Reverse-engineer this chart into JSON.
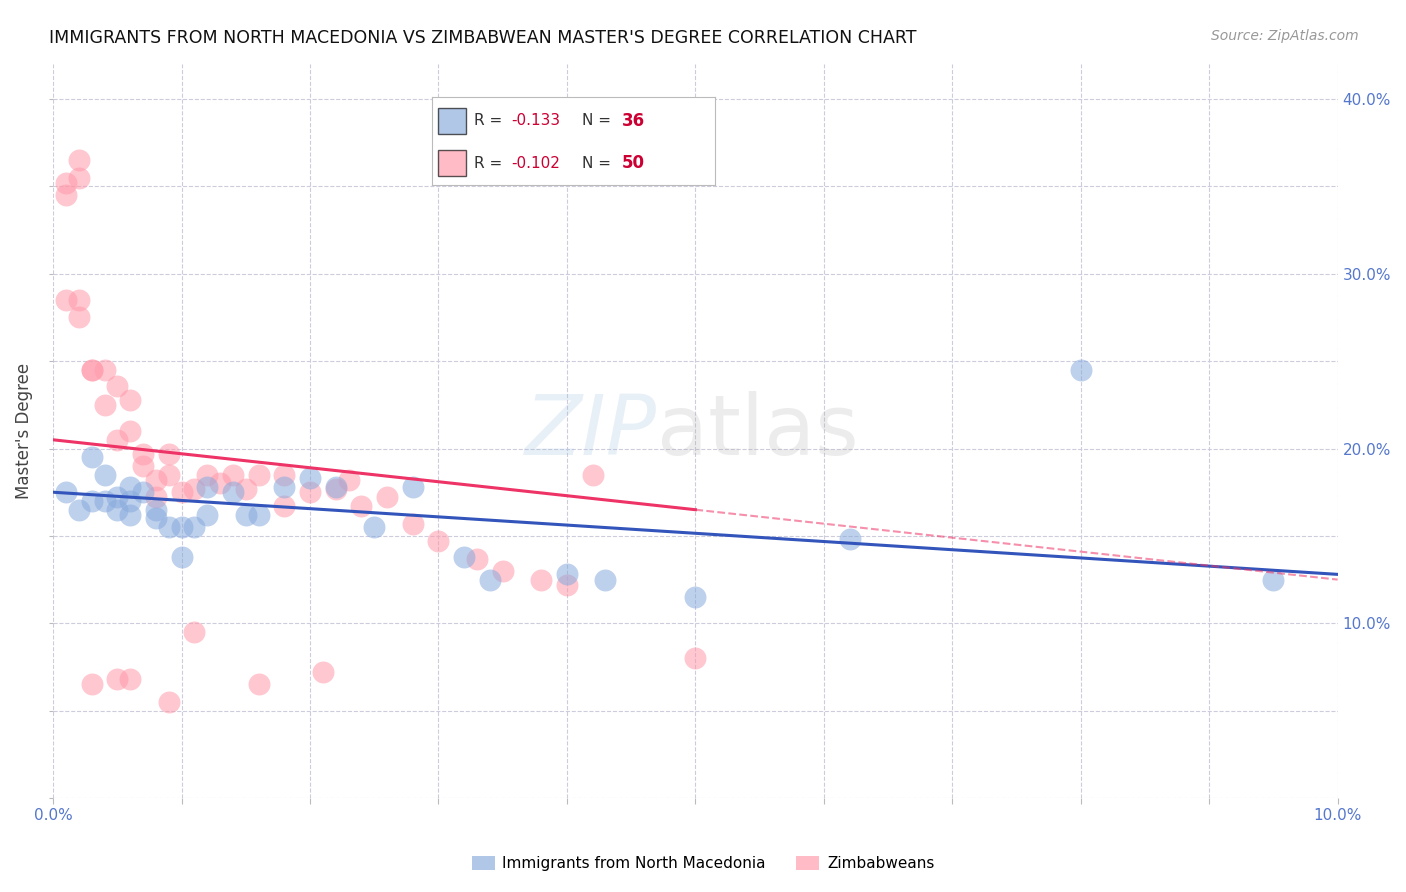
{
  "title": "IMMIGRANTS FROM NORTH MACEDONIA VS ZIMBABWEAN MASTER'S DEGREE CORRELATION CHART",
  "source": "Source: ZipAtlas.com",
  "ylabel_left": "Master's Degree",
  "legend1_label": "Immigrants from North Macedonia",
  "legend2_label": "Zimbabweans",
  "r1": -0.133,
  "n1": 36,
  "r2": -0.102,
  "n2": 50,
  "color1": "#88AADD",
  "color2": "#FF99AA",
  "trend1_color": "#3355BB",
  "trend2_color": "#EE3366",
  "axis_label_color": "#5577CC",
  "xmin": 0.0,
  "xmax": 0.1,
  "ymin": 0.0,
  "ymax": 0.42,
  "blue_scatter_x": [
    0.001,
    0.002,
    0.003,
    0.003,
    0.004,
    0.004,
    0.005,
    0.005,
    0.006,
    0.006,
    0.006,
    0.007,
    0.008,
    0.008,
    0.009,
    0.01,
    0.01,
    0.011,
    0.012,
    0.012,
    0.014,
    0.015,
    0.016,
    0.018,
    0.02,
    0.022,
    0.025,
    0.028,
    0.032,
    0.034,
    0.04,
    0.043,
    0.05,
    0.062,
    0.08,
    0.095
  ],
  "blue_scatter_y": [
    0.175,
    0.165,
    0.195,
    0.17,
    0.185,
    0.17,
    0.172,
    0.165,
    0.178,
    0.162,
    0.17,
    0.175,
    0.165,
    0.16,
    0.155,
    0.155,
    0.138,
    0.155,
    0.162,
    0.178,
    0.175,
    0.162,
    0.162,
    0.178,
    0.183,
    0.178,
    0.155,
    0.178,
    0.138,
    0.125,
    0.128,
    0.125,
    0.115,
    0.148,
    0.245,
    0.125
  ],
  "pink_scatter_x": [
    0.001,
    0.001,
    0.001,
    0.002,
    0.002,
    0.002,
    0.003,
    0.003,
    0.004,
    0.004,
    0.005,
    0.005,
    0.006,
    0.006,
    0.007,
    0.007,
    0.008,
    0.008,
    0.009,
    0.009,
    0.01,
    0.011,
    0.012,
    0.013,
    0.014,
    0.015,
    0.016,
    0.018,
    0.018,
    0.02,
    0.022,
    0.024,
    0.026,
    0.028,
    0.03,
    0.033,
    0.035,
    0.038,
    0.04,
    0.042,
    0.002,
    0.003,
    0.005,
    0.006,
    0.009,
    0.011,
    0.016,
    0.021,
    0.05,
    0.023
  ],
  "pink_scatter_y": [
    0.352,
    0.345,
    0.285,
    0.355,
    0.365,
    0.275,
    0.245,
    0.245,
    0.245,
    0.225,
    0.236,
    0.205,
    0.228,
    0.21,
    0.197,
    0.19,
    0.182,
    0.172,
    0.197,
    0.185,
    0.175,
    0.177,
    0.185,
    0.18,
    0.185,
    0.177,
    0.185,
    0.185,
    0.167,
    0.175,
    0.177,
    0.167,
    0.172,
    0.157,
    0.147,
    0.137,
    0.13,
    0.125,
    0.122,
    0.185,
    0.285,
    0.065,
    0.068,
    0.068,
    0.055,
    0.095,
    0.065,
    0.072,
    0.08,
    0.182
  ],
  "blue_trend_x0": 0.0,
  "blue_trend_x1": 0.1,
  "blue_trend_y0": 0.175,
  "blue_trend_y1": 0.128,
  "pink_trend_x0": 0.0,
  "pink_trend_x1": 0.05,
  "pink_trend_y0": 0.205,
  "pink_trend_y1": 0.165
}
